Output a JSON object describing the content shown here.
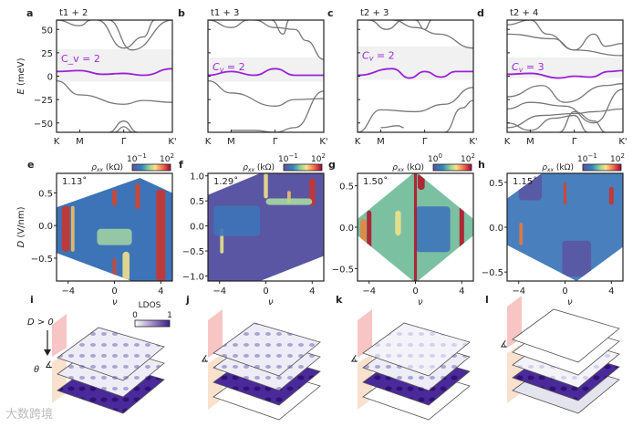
{
  "colors": {
    "band": "#777777",
    "flat_band": "#9b22d6",
    "gap_shade": "#f1f1f1",
    "cv_label": "#a02bd6",
    "ldos_dark": "#3d1d8a",
    "ldos_light": "#ecebf6",
    "pink": "#f6b7b7",
    "peach": "#f8d9c2"
  },
  "band_panels": [
    {
      "letter": "a",
      "title": "t1 + 2",
      "cv": "C_v = 2",
      "cv_sub": "v",
      "cv_eq": " = 2",
      "gap": [
        -6,
        29
      ],
      "flat": [
        [
          0,
          5
        ],
        [
          0.2,
          6
        ],
        [
          0.4,
          2
        ],
        [
          0.58,
          3
        ],
        [
          0.75,
          1
        ],
        [
          1,
          8
        ]
      ],
      "bands": [
        [
          [
            0,
            60
          ],
          [
            0.2,
            54
          ],
          [
            0.3,
            60
          ]
        ],
        [
          [
            0.35,
            60
          ],
          [
            0.58,
            30
          ],
          [
            0.75,
            42
          ],
          [
            0.85,
            60
          ]
        ],
        [
          [
            0.45,
            60
          ],
          [
            0.65,
            28
          ],
          [
            1,
            60
          ]
        ],
        [
          [
            0,
            -5
          ],
          [
            0.2,
            -20
          ],
          [
            0.58,
            -30
          ],
          [
            0.75,
            -26
          ],
          [
            1,
            -28
          ]
        ],
        [
          [
            0.45,
            -60
          ],
          [
            0.58,
            -48
          ],
          [
            0.7,
            -60
          ]
        ],
        [
          [
            0.5,
            -60
          ],
          [
            0.58,
            -54
          ],
          [
            0.66,
            -60
          ]
        ]
      ]
    },
    {
      "letter": "b",
      "title": "t1 + 3",
      "cv_eq": " = 2",
      "gap": [
        -6,
        20
      ],
      "flat": [
        [
          0,
          1
        ],
        [
          0.2,
          5
        ],
        [
          0.4,
          1
        ],
        [
          0.58,
          8
        ],
        [
          0.75,
          1
        ],
        [
          1,
          1
        ]
      ],
      "bands": [
        [
          [
            0,
            60
          ],
          [
            0.2,
            52
          ],
          [
            0.35,
            60
          ]
        ],
        [
          [
            0.4,
            60
          ],
          [
            0.58,
            52
          ],
          [
            0.75,
            50
          ],
          [
            0.85,
            38
          ],
          [
            1,
            18
          ]
        ],
        [
          [
            0.55,
            60
          ],
          [
            0.65,
            45
          ],
          [
            0.7,
            60
          ]
        ],
        [
          [
            0,
            -5
          ],
          [
            0.2,
            -18
          ],
          [
            0.58,
            -32
          ],
          [
            0.75,
            -25
          ],
          [
            1,
            -24
          ]
        ],
        [
          [
            0.2,
            -58
          ],
          [
            0.4,
            -58
          ],
          [
            0.58,
            -60
          ],
          [
            0.75,
            -55
          ],
          [
            1,
            -16
          ]
        ]
      ]
    },
    {
      "letter": "c",
      "title": "t2 + 3",
      "cv_eq": " = 2",
      "gap": [
        -4,
        32
      ],
      "flat": [
        [
          0,
          1
        ],
        [
          0.3,
          8
        ],
        [
          0.45,
          -2
        ],
        [
          0.58,
          5
        ],
        [
          0.72,
          -1
        ],
        [
          0.85,
          5
        ],
        [
          1,
          5
        ]
      ],
      "bands": [
        [
          [
            0.1,
            60
          ],
          [
            0.25,
            50
          ],
          [
            0.4,
            60
          ]
        ],
        [
          [
            0.3,
            60
          ],
          [
            0.5,
            52
          ],
          [
            0.7,
            45
          ],
          [
            1,
            30
          ]
        ],
        [
          [
            0.5,
            60
          ],
          [
            0.58,
            50
          ],
          [
            0.64,
            60
          ]
        ],
        [
          [
            0,
            -60
          ],
          [
            0.2,
            -36
          ],
          [
            0.5,
            -38
          ],
          [
            0.75,
            -30
          ],
          [
            1,
            -12
          ]
        ],
        [
          [
            0.2,
            -55
          ],
          [
            0.35,
            -53
          ],
          [
            0.4,
            -55
          ]
        ],
        [
          [
            0.75,
            -60
          ],
          [
            0.9,
            -34
          ],
          [
            1,
            -26
          ]
        ]
      ]
    },
    {
      "letter": "d",
      "title": "t2 + 4",
      "cv_eq": " = 3",
      "gap": [
        -2,
        20
      ],
      "flat": [
        [
          0,
          2
        ],
        [
          0.2,
          3
        ],
        [
          0.45,
          -2
        ],
        [
          0.58,
          0
        ],
        [
          0.72,
          -1
        ],
        [
          0.88,
          5
        ],
        [
          1,
          6
        ]
      ],
      "bands": [
        [
          [
            0,
            55
          ],
          [
            0.2,
            60
          ]
        ],
        [
          [
            0,
            45
          ],
          [
            0.4,
            40
          ],
          [
            0.58,
            28
          ],
          [
            0.75,
            45
          ],
          [
            0.85,
            32
          ],
          [
            1,
            35
          ]
        ],
        [
          [
            0.2,
            60
          ],
          [
            0.35,
            45
          ],
          [
            0.58,
            28
          ],
          [
            1,
            22
          ]
        ],
        [
          [
            0,
            -22
          ],
          [
            0.3,
            -10
          ],
          [
            0.5,
            -28
          ],
          [
            0.85,
            -10
          ],
          [
            1,
            -8
          ]
        ],
        [
          [
            0,
            -35
          ],
          [
            0.2,
            -28
          ],
          [
            0.5,
            -32
          ],
          [
            0.75,
            -50
          ],
          [
            1,
            -14
          ]
        ],
        [
          [
            0,
            -55
          ],
          [
            0.3,
            -42
          ],
          [
            0.58,
            -40
          ],
          [
            0.75,
            -38
          ],
          [
            1,
            -35
          ]
        ],
        [
          [
            0,
            -50
          ],
          [
            0.2,
            -58
          ],
          [
            0.4,
            -45
          ],
          [
            0.58,
            -42
          ],
          [
            0.7,
            -60
          ]
        ],
        [
          [
            0.45,
            -60
          ],
          [
            0.58,
            -38
          ],
          [
            0.75,
            -48
          ],
          [
            0.85,
            -60
          ]
        ]
      ]
    }
  ],
  "band_axis": {
    "ylabel_var": "E",
    "ylabel_unit": " (meV)",
    "yticks": [
      50,
      25,
      0,
      -25,
      -50
    ],
    "yticklabels": [
      "50",
      "25",
      "0",
      "−25",
      "−50"
    ],
    "ylim": [
      -60,
      60
    ],
    "kticks": [
      0,
      0.2,
      0.58,
      1
    ],
    "kticklabels": [
      "K",
      "M",
      "Γ",
      "K'"
    ]
  },
  "cv_var": "C",
  "cv_sub": "v",
  "map_panels": [
    {
      "letter": "e",
      "angle": "1.13˚",
      "cb_lo": "10",
      "cb_lo_exp": "−1",
      "cb_hi": "10",
      "cb_hi_exp": "2",
      "ylim": [
        -0.85,
        0.8
      ],
      "yticks": [
        0.5,
        0,
        -0.5
      ],
      "yticklabels": [
        "0.5",
        "0.0",
        "−0.5"
      ],
      "hex": [
        [
          -5,
          0.28
        ],
        [
          2.2,
          0.73
        ],
        [
          5,
          0.5
        ],
        [
          5,
          -0.85
        ],
        [
          1.5,
          -0.85
        ],
        [
          -5,
          -0.42
        ]
      ],
      "base": "#3d74b8",
      "stripes": [
        [
          -4.2,
          -0.4,
          0.3,
          "#c8352e",
          0.7
        ],
        [
          -3.6,
          -0.4,
          0.3,
          "#f0c060",
          0.3
        ],
        [
          4,
          -0.85,
          0.55,
          "#c8352e",
          0.8
        ],
        [
          0,
          0.3,
          0.55,
          "#d4452c",
          0.4
        ],
        [
          2,
          0.25,
          0.65,
          "#d4452c",
          0.4
        ],
        [
          0,
          -0.85,
          -0.5,
          "#d4452c",
          0.3
        ],
        [
          1,
          -0.85,
          -0.4,
          "#f0e08a",
          0.6
        ],
        [
          0,
          -0.3,
          -0.05,
          "#9fd0a4",
          3
        ]
      ]
    },
    {
      "letter": "f",
      "angle": "1.29˚",
      "cb_lo": "10",
      "cb_lo_exp": "−1",
      "cb_hi": "10",
      "cb_hi_exp": "2",
      "ylim": [
        -1.1,
        1.05
      ],
      "yticks": [
        1,
        0.5,
        0,
        -0.5,
        -1
      ],
      "yticklabels": [
        "1.0",
        "0.5",
        "0.0",
        "−0.5",
        "−1.0"
      ],
      "hex": [
        [
          -5,
          0.62
        ],
        [
          -0.5,
          1.05
        ],
        [
          5,
          1.05
        ],
        [
          5,
          -0.6
        ],
        [
          -0.5,
          -1.1
        ],
        [
          -5,
          -1.1
        ]
      ],
      "base": "#5b56a3",
      "stripes": [
        [
          4,
          0.4,
          0.95,
          "#c8352e",
          0.5
        ],
        [
          0,
          0.55,
          1.05,
          "#f0e08a",
          0.35
        ],
        [
          2,
          0.45,
          0.7,
          "#f0c060",
          0.3
        ],
        [
          -3.8,
          -0.55,
          -0.05,
          "#e8e488",
          0.3
        ],
        [
          2,
          0.42,
          0.55,
          "#a8d8a0",
          4
        ],
        [
          -2.5,
          -0.2,
          0.4,
          "#3d74b8",
          4
        ]
      ]
    },
    {
      "letter": "g",
      "angle": "1.50˚",
      "cb_lo": "10",
      "cb_lo_exp": "0",
      "cb_hi": "10",
      "cb_hi_exp": "2",
      "ylim": [
        -0.65,
        0.65
      ],
      "yticks": [
        0.5,
        0,
        -0.5
      ],
      "yticklabels": [
        "0.5",
        "0.0",
        "−0.5"
      ],
      "hex": [
        [
          -5,
          0.1
        ],
        [
          -0.2,
          0.65
        ],
        [
          0.2,
          0.65
        ],
        [
          5,
          0.1
        ],
        [
          5,
          -0.1
        ],
        [
          0.2,
          -0.65
        ],
        [
          -0.2,
          -0.65
        ],
        [
          -5,
          -0.1
        ]
      ],
      "base": "#7cc0a2",
      "stripes": [
        [
          1.5,
          -0.3,
          0.25,
          "#3d74b8",
          3
        ],
        [
          -4,
          -0.3,
          0.2,
          "#b0172a",
          0.4
        ],
        [
          -4.5,
          -0.2,
          0.1,
          "#e8853a",
          0.5
        ],
        [
          0,
          -0.65,
          0.65,
          "#b0172a",
          0.25
        ],
        [
          4,
          -0.4,
          0.4,
          "#b0172a",
          0.4
        ],
        [
          0.5,
          0.45,
          0.65,
          "#b0172a",
          0.6
        ],
        [
          -1.5,
          -0.1,
          0.2,
          "#f0e08a",
          0.5
        ]
      ]
    },
    {
      "letter": "h",
      "angle": "1.15˚",
      "cb_lo": "10",
      "cb_lo_exp": "−1",
      "cb_hi": "10",
      "cb_hi_exp": "2",
      "ylim": [
        -0.6,
        0.6
      ],
      "yticks": [
        0.5,
        0,
        -0.5
      ],
      "yticklabels": [
        "0.5",
        "0.0",
        "−0.5"
      ],
      "hex": [
        [
          -5,
          0.32
        ],
        [
          -2,
          0.6
        ],
        [
          5,
          0.6
        ],
        [
          5,
          -0.22
        ],
        [
          1,
          -0.6
        ],
        [
          -5,
          -0.2
        ]
      ],
      "base": "#4a7fbd",
      "stripes": [
        [
          0,
          0.25,
          0.5,
          "#d4452c",
          0.25
        ],
        [
          4,
          0.25,
          0.45,
          "#c8352e",
          0.4
        ],
        [
          -3.8,
          -0.2,
          0.05,
          "#e87a3a",
          0.3
        ],
        [
          1,
          -0.55,
          -0.15,
          "#5b56a3",
          2.5
        ],
        [
          -3,
          0.3,
          0.6,
          "#5b56a3",
          2
        ]
      ]
    }
  ],
  "map_axis": {
    "xticks": [
      -4,
      0,
      4
    ],
    "xticklabels": [
      "−4",
      "0",
      "4"
    ],
    "xlim": [
      -5,
      5
    ],
    "ylabel_var": "D",
    "ylabel_unit": " (V/nm)",
    "cb_label": "ρ",
    "cb_sub": "xx",
    "cb_unit": " (kΩ)"
  },
  "stack_panels": [
    {
      "letter": "i",
      "nu": "ν",
      "layers": [
        "dots",
        "dots",
        "dark"
      ]
    },
    {
      "letter": "j",
      "nu": "ν",
      "layers": [
        "dots",
        "dots",
        "dark",
        "white"
      ]
    },
    {
      "letter": "k",
      "nu": "ν",
      "layers": [
        "faint",
        "dots",
        "dark",
        "white"
      ]
    },
    {
      "letter": "l",
      "nu": "ν",
      "layers": [
        "white",
        "white",
        "faint",
        "dark",
        "grey"
      ]
    }
  ],
  "stack_labels": {
    "d_field": "D > 0",
    "theta": "θ",
    "ldos": "LDOS",
    "ldos_lo": "0",
    "ldos_hi": "1"
  },
  "watermark": "大数跨境"
}
